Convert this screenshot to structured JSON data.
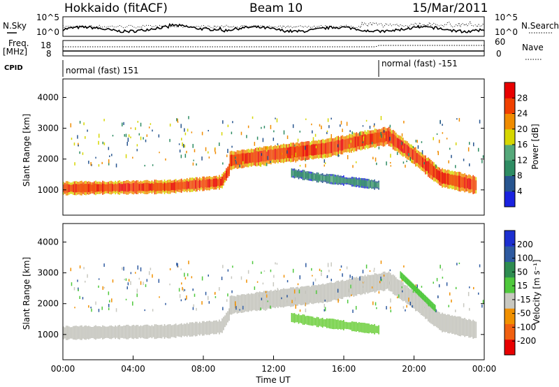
{
  "header": {
    "station": "Hokkaido (fitACF)",
    "beam": "Beam 10",
    "date": "15/Mar/2011"
  },
  "top_panels": {
    "nsky_label": "N.Sky",
    "nsearch_label": "N.Search",
    "freq_label_1": "Freq.",
    "freq_label_2": "[MHz]",
    "nave_label": "Nave",
    "cpid_label": "CPID",
    "noise_ticks_left": [
      "10^5",
      "10^0"
    ],
    "noise_ticks_right": [
      "10^5",
      "10^0"
    ],
    "freq_ticks": [
      "18",
      "8"
    ],
    "nave_ticks": [
      "60",
      "0"
    ],
    "cpid_segments": [
      {
        "label": "normal (fast) 151",
        "start_hour": 0
      },
      {
        "label": "normal (fast) -151",
        "start_hour": 18
      }
    ]
  },
  "chart_data": [
    {
      "type": "heatmap",
      "title": "",
      "xlabel": "",
      "ylabel": "Slant Range [km]",
      "xlim": [
        "00:00",
        "24:00"
      ],
      "ylim": [
        180,
        4600
      ],
      "yticks": [
        "1000",
        "2000",
        "3000",
        "4000"
      ],
      "colorbar": {
        "label": "Power [dB]",
        "range": [
          0,
          32
        ],
        "ticks": [
          "4",
          "8",
          "12",
          "16",
          "20",
          "24",
          "28"
        ],
        "colors": [
          "#1a22e0",
          "#27558f",
          "#2e8c63",
          "#55a87a",
          "#d6d600",
          "#f08c00",
          "#f04000",
          "#e80000"
        ]
      },
      "bands": [
        {
          "name": "low",
          "x": [
            0,
            6.0,
            9.0,
            9.5
          ],
          "y": [
            1050,
            1100,
            1250,
            1700
          ]
        },
        {
          "name": "main",
          "x": [
            9.5,
            12,
            15,
            17,
            18.5,
            20,
            21.5,
            23.5
          ],
          "y": [
            1950,
            2150,
            2350,
            2600,
            2750,
            2100,
            1400,
            1150
          ]
        },
        {
          "name": "mid",
          "x": [
            13,
            14.5,
            16,
            18
          ],
          "y": [
            1550,
            1400,
            1300,
            1150
          ]
        }
      ]
    },
    {
      "type": "heatmap",
      "title": "",
      "xlabel": "Time UT",
      "ylabel": "Slant Range [km]",
      "xlim": [
        "00:00",
        "24:00"
      ],
      "ylim": [
        180,
        4600
      ],
      "yticks": [
        "1000",
        "2000",
        "3000",
        "4000"
      ],
      "xticks": [
        "00:00",
        "04:00",
        "08:00",
        "12:00",
        "16:00",
        "20:00",
        "00:00"
      ],
      "colorbar": {
        "label": "Velocity [m s⁻¹]",
        "range": [
          -250,
          250
        ],
        "ticks": [
          "200",
          "100",
          "50",
          "15",
          "-15",
          "-50",
          "-100",
          "-200"
        ],
        "colors": [
          "#1c2fd0",
          "#2e5aa0",
          "#2e8c50",
          "#4fc83c",
          "#c8c8c0",
          "#f09000",
          "#f06010",
          "#e80000"
        ]
      },
      "ground_scatter_color": "#c0c0b8",
      "ionospheric_scatter_color": "#66cc33"
    }
  ]
}
